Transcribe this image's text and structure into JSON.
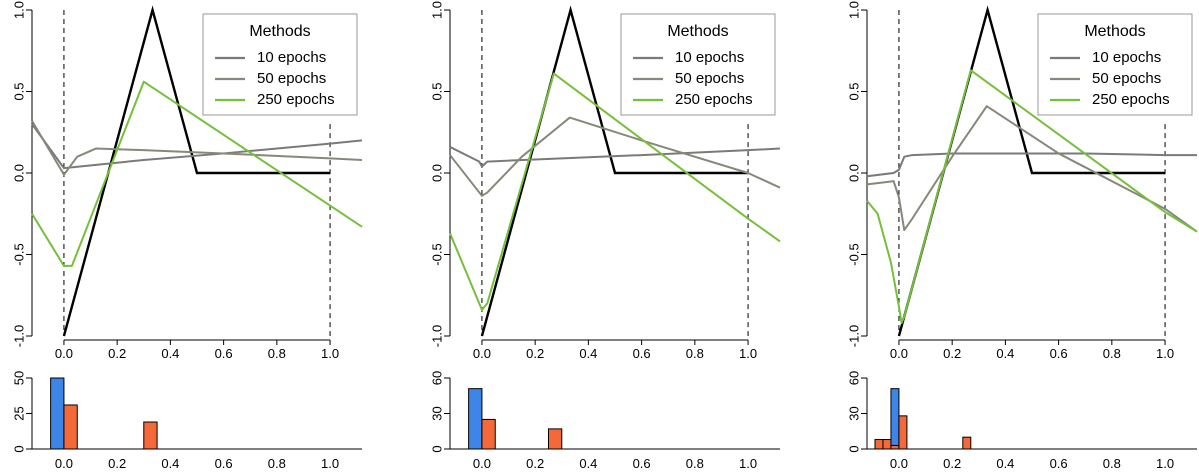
{
  "colors": {
    "truth": "#000000",
    "10 epochs": "#7a7a7a",
    "50 epochs": "#85897a",
    "250 epochs": "#76bf3c",
    "hist_blue": "#3d86e8",
    "hist_orange": "#f4693a"
  },
  "chart_data": [
    {
      "type": "line",
      "xlim": [
        -0.12,
        1.12
      ],
      "ylim": [
        -1.0,
        1.0
      ],
      "xticks": [
        "0.0",
        "0.2",
        "0.4",
        "0.6",
        "0.8",
        "1.0"
      ],
      "yticks": [
        "-1.0",
        "-0.5",
        "0.0",
        "0.5",
        "1.0"
      ],
      "vlines": [
        0,
        1
      ],
      "legend": {
        "title": "Methods",
        "position": "top-right"
      },
      "truth": {
        "x": [
          0,
          0.333,
          0.5,
          1.0
        ],
        "y": [
          -1.0,
          1.0,
          0.0,
          0.0
        ]
      },
      "series": [
        {
          "name": "10 epochs",
          "x": [
            -0.12,
            0.0,
            0.3,
            0.6,
            1.0,
            1.12
          ],
          "y": [
            0.3,
            0.03,
            0.08,
            0.12,
            0.18,
            0.2
          ]
        },
        {
          "name": "50 epochs",
          "x": [
            -0.12,
            0.0,
            0.05,
            0.12,
            0.3,
            0.6,
            1.0,
            1.12
          ],
          "y": [
            0.32,
            -0.01,
            0.1,
            0.15,
            0.14,
            0.12,
            0.09,
            0.08
          ]
        },
        {
          "name": "250 epochs",
          "x": [
            -0.12,
            0.0,
            0.03,
            0.3,
            1.0,
            1.12
          ],
          "y": [
            -0.25,
            -0.57,
            -0.57,
            0.56,
            -0.2,
            -0.33
          ]
        }
      ]
    },
    {
      "type": "bar",
      "xlim": [
        -0.12,
        1.12
      ],
      "ylim": [
        0,
        50
      ],
      "xticks": [
        "0.0",
        "0.2",
        "0.4",
        "0.6",
        "0.8",
        "1.0"
      ],
      "yticks": [
        "0",
        "25",
        "50"
      ],
      "series": [
        {
          "color": "hist_blue",
          "bins": [
            {
              "x0": -0.05,
              "x1": 0.0,
              "value": 50
            }
          ]
        },
        {
          "color": "hist_orange",
          "bins": [
            {
              "x0": 0.0,
              "x1": 0.05,
              "value": 31
            },
            {
              "x0": 0.3,
              "x1": 0.35,
              "value": 19
            }
          ]
        }
      ]
    },
    {
      "type": "line",
      "xlim": [
        -0.12,
        1.12
      ],
      "ylim": [
        -1.0,
        1.0
      ],
      "xticks": [
        "0.0",
        "0.2",
        "0.4",
        "0.6",
        "0.8",
        "1.0"
      ],
      "yticks": [
        "-1.0",
        "-0.5",
        "0.0",
        "0.5",
        "1.0"
      ],
      "vlines": [
        0,
        1
      ],
      "legend": {
        "title": "Methods",
        "position": "top-right"
      },
      "truth": {
        "x": [
          0,
          0.333,
          0.5,
          1.0
        ],
        "y": [
          -1.0,
          1.0,
          0.0,
          0.0
        ]
      },
      "series": [
        {
          "name": "10 epochs",
          "x": [
            -0.12,
            -0.01,
            0.0,
            0.02,
            0.3,
            0.6,
            1.0,
            1.12
          ],
          "y": [
            0.16,
            0.07,
            0.04,
            0.07,
            0.09,
            0.11,
            0.14,
            0.15
          ]
        },
        {
          "name": "50 epochs",
          "x": [
            -0.12,
            0.0,
            0.02,
            0.15,
            0.33,
            0.6,
            1.0,
            1.12
          ],
          "y": [
            0.11,
            -0.14,
            -0.12,
            0.1,
            0.34,
            0.2,
            0.0,
            -0.09
          ]
        },
        {
          "name": "250 epochs",
          "x": [
            -0.12,
            0.0,
            0.02,
            0.27,
            1.0,
            1.12
          ],
          "y": [
            -0.37,
            -0.84,
            -0.8,
            0.61,
            -0.28,
            -0.42
          ]
        }
      ]
    },
    {
      "type": "bar",
      "xlim": [
        -0.12,
        1.12
      ],
      "ylim": [
        0,
        60
      ],
      "xticks": [
        "0.0",
        "0.2",
        "0.4",
        "0.6",
        "0.8",
        "1.0"
      ],
      "yticks": [
        "0",
        "30",
        "60"
      ],
      "series": [
        {
          "color": "hist_blue",
          "bins": [
            {
              "x0": -0.05,
              "x1": 0.0,
              "value": 51
            }
          ]
        },
        {
          "color": "hist_orange",
          "bins": [
            {
              "x0": 0.0,
              "x1": 0.05,
              "value": 25
            },
            {
              "x0": 0.25,
              "x1": 0.3,
              "value": 17
            }
          ]
        }
      ]
    },
    {
      "type": "line",
      "xlim": [
        -0.12,
        1.12
      ],
      "ylim": [
        -1.0,
        1.0
      ],
      "xticks": [
        "0.0",
        "0.2",
        "0.4",
        "0.6",
        "0.8",
        "1.0"
      ],
      "yticks": [
        "-1.0",
        "-0.5",
        "0.0",
        "0.5",
        "1.0"
      ],
      "vlines": [
        0,
        1
      ],
      "legend": {
        "title": "Methods",
        "position": "top-right"
      },
      "truth": {
        "x": [
          0,
          0.333,
          0.5,
          1.0
        ],
        "y": [
          -1.0,
          1.0,
          0.0,
          0.0
        ]
      },
      "series": [
        {
          "name": "10 epochs",
          "x": [
            -0.12,
            -0.02,
            0.0,
            0.01,
            0.02,
            0.05,
            0.2,
            0.4,
            0.7,
            1.0,
            1.12
          ],
          "y": [
            -0.02,
            0.0,
            0.02,
            0.06,
            0.1,
            0.11,
            0.12,
            0.12,
            0.12,
            0.11,
            0.11
          ]
        },
        {
          "name": "50 epochs",
          "x": [
            -0.12,
            -0.02,
            0.0,
            0.02,
            0.05,
            0.2,
            0.33,
            0.6,
            1.0,
            1.12
          ],
          "y": [
            -0.07,
            -0.05,
            -0.15,
            -0.35,
            -0.28,
            0.1,
            0.41,
            0.12,
            -0.22,
            -0.36
          ]
        },
        {
          "name": "250 epochs",
          "x": [
            -0.12,
            -0.08,
            -0.03,
            0.0,
            0.01,
            0.02,
            0.27,
            1.0,
            1.12
          ],
          "y": [
            -0.17,
            -0.25,
            -0.55,
            -0.82,
            -0.92,
            -0.88,
            0.63,
            -0.24,
            -0.36
          ]
        }
      ]
    },
    {
      "type": "bar",
      "xlim": [
        -0.12,
        1.12
      ],
      "ylim": [
        0,
        60
      ],
      "xticks": [
        "0.0",
        "0.2",
        "0.4",
        "0.6",
        "0.8",
        "1.0"
      ],
      "yticks": [
        "0",
        "30",
        "60"
      ],
      "series": [
        {
          "color": "hist_blue",
          "bins": [
            {
              "x0": -0.03,
              "x1": 0.0,
              "value": 51
            }
          ]
        },
        {
          "color": "hist_orange",
          "bins": [
            {
              "x0": -0.09,
              "x1": -0.06,
              "value": 8
            },
            {
              "x0": -0.06,
              "x1": -0.03,
              "value": 8
            },
            {
              "x0": -0.03,
              "x1": 0.0,
              "value": 3
            },
            {
              "x0": 0.0,
              "x1": 0.03,
              "value": 28
            },
            {
              "x0": 0.24,
              "x1": 0.27,
              "value": 10
            }
          ]
        }
      ]
    }
  ]
}
